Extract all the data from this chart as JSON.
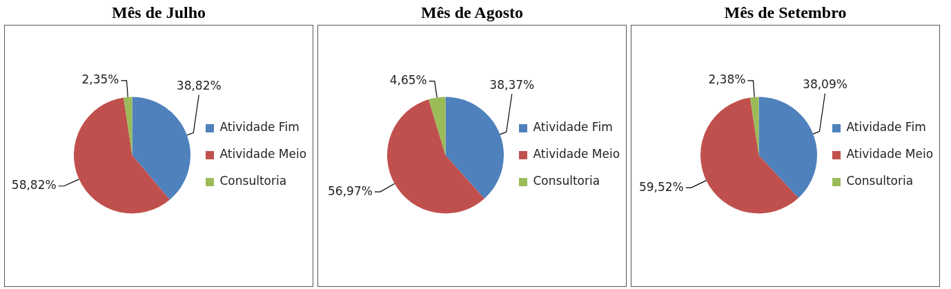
{
  "chart_data": [
    {
      "type": "pie",
      "title": "Mês de Julho",
      "categories": [
        "Atividade Fim",
        "Atividade Meio",
        "Consultoria"
      ],
      "values": [
        38.82,
        58.82,
        2.35
      ],
      "value_labels": [
        "38,82%",
        "58,82%",
        "2,35%"
      ],
      "colors": [
        "#4f81bd",
        "#c0504d",
        "#9bbb59"
      ],
      "legend": "right"
    },
    {
      "type": "pie",
      "title": "Mês de Agosto",
      "categories": [
        "Atividade Fim",
        "Atividade Meio",
        "Consultoria"
      ],
      "values": [
        38.37,
        56.97,
        4.65
      ],
      "value_labels": [
        "38,37%",
        "56,97%",
        "4,65%"
      ],
      "colors": [
        "#4f81bd",
        "#c0504d",
        "#9bbb59"
      ],
      "legend": "right"
    },
    {
      "type": "pie",
      "title": "Mês de Setembro",
      "categories": [
        "Atividade Fim",
        "Atividade Meio",
        "Consultoria"
      ],
      "values": [
        38.09,
        59.52,
        2.38
      ],
      "value_labels": [
        "38,09%",
        "59,52%",
        "2,38%"
      ],
      "colors": [
        "#4f81bd",
        "#c0504d",
        "#9bbb59"
      ],
      "legend": "right"
    }
  ]
}
